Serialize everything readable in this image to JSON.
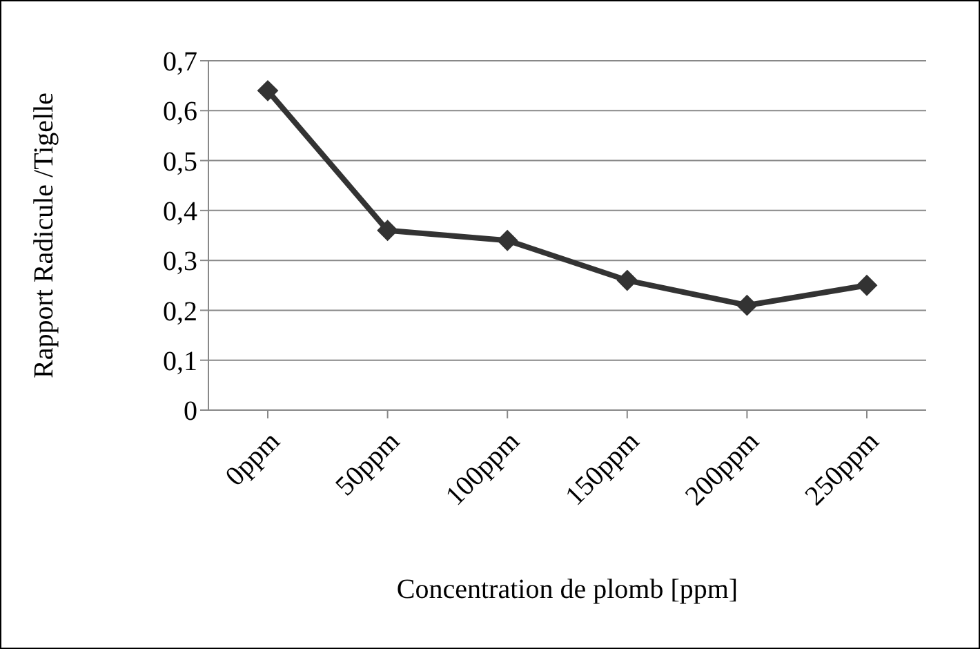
{
  "chart_data": {
    "type": "line",
    "xlabel": "Concentration de plomb [ppm]",
    "ylabel": "Rapport Radicule /Tigelle",
    "categories": [
      "0ppm",
      "50ppm",
      "100ppm",
      "150ppm",
      "200ppm",
      "250ppm"
    ],
    "series": [
      {
        "color": "#333333",
        "values": [
          0.64,
          0.36,
          0.34,
          0.26,
          0.21,
          0.25
        ]
      }
    ],
    "ylim": [
      0,
      0.7
    ],
    "yticks": [
      {
        "value": 0,
        "label": "0"
      },
      {
        "value": 0.1,
        "label": "0,1"
      },
      {
        "value": 0.2,
        "label": "0,2"
      },
      {
        "value": 0.3,
        "label": "0,3"
      },
      {
        "value": 0.4,
        "label": "0,4"
      },
      {
        "value": 0.5,
        "label": "0,5"
      },
      {
        "value": 0.6,
        "label": "0,6"
      },
      {
        "value": 0.7,
        "label": "0,7"
      }
    ],
    "grid": "y",
    "legend": false,
    "marker": "diamond",
    "line_style": "solid"
  }
}
